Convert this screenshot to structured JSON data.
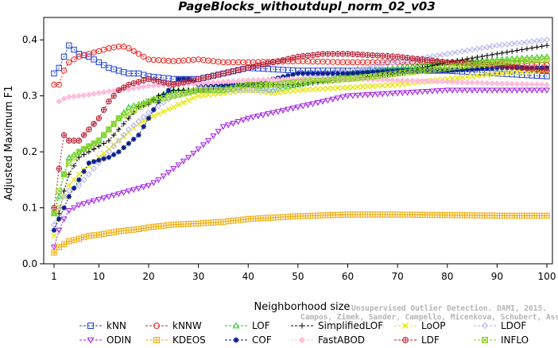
{
  "chart_data": {
    "type": "line",
    "title": "PageBlocks_withoutdupl_norm_02_v03",
    "xlabel": "Neighborhood size",
    "ylabel": "Adjusted Maximum F1",
    "xlim": [
      1,
      100
    ],
    "ylim": [
      0.0,
      0.44
    ],
    "xticks": [
      "1",
      "10",
      "20",
      "30",
      "40",
      "50",
      "60",
      "70",
      "80",
      "90",
      "100"
    ],
    "yticks": [
      "0.0",
      "0.1",
      "0.2",
      "0.3",
      "0.4"
    ],
    "grid": false,
    "legend_position": "bottom",
    "watermark": [
      "Unsupervised Outlier Detection. DAMI, 2015.",
      "Campos, Zimek, Sander, Campello, Micenkova, Schubert, Assent, Houle"
    ],
    "series": [
      {
        "name": "kNN",
        "color": "#1f3fd6",
        "marker": "square",
        "x": [
          1,
          2,
          3,
          4,
          6,
          8,
          10,
          12,
          14,
          16,
          18,
          20,
          25,
          30,
          35,
          40,
          50,
          60,
          70,
          80,
          90,
          100
        ],
        "values": [
          0.34,
          0.35,
          0.37,
          0.39,
          0.375,
          0.37,
          0.36,
          0.35,
          0.345,
          0.34,
          0.34,
          0.335,
          0.33,
          0.33,
          0.34,
          0.35,
          0.345,
          0.345,
          0.345,
          0.345,
          0.34,
          0.335
        ]
      },
      {
        "name": "kNNW",
        "color": "#e8231e",
        "marker": "circle",
        "x": [
          1,
          2,
          3,
          4,
          6,
          8,
          10,
          12,
          14,
          15,
          16,
          18,
          20,
          25,
          30,
          35,
          40,
          50,
          60,
          70,
          80,
          90,
          100
        ],
        "values": [
          0.32,
          0.32,
          0.345,
          0.36,
          0.37,
          0.375,
          0.38,
          0.385,
          0.388,
          0.388,
          0.385,
          0.375,
          0.365,
          0.362,
          0.365,
          0.36,
          0.36,
          0.362,
          0.36,
          0.36,
          0.36,
          0.36,
          0.355
        ]
      },
      {
        "name": "LOF",
        "color": "#1ec81e",
        "marker": "triangle",
        "x": [
          1,
          2,
          3,
          4,
          6,
          8,
          10,
          12,
          14,
          16,
          18,
          20,
          22,
          25,
          30,
          35,
          40,
          45,
          50,
          60,
          70,
          80,
          90,
          100
        ],
        "values": [
          0.09,
          0.12,
          0.16,
          0.19,
          0.2,
          0.21,
          0.22,
          0.24,
          0.26,
          0.28,
          0.285,
          0.29,
          0.3,
          0.31,
          0.31,
          0.32,
          0.32,
          0.31,
          0.32,
          0.34,
          0.35,
          0.36,
          0.365,
          0.37
        ]
      },
      {
        "name": "SimplifiedLOF",
        "color": "#000000",
        "marker": "plus",
        "x": [
          1,
          2,
          3,
          4,
          6,
          8,
          10,
          12,
          14,
          16,
          18,
          20,
          22,
          25,
          30,
          35,
          40,
          45,
          50,
          60,
          70,
          80,
          90,
          100
        ],
        "values": [
          0.06,
          0.09,
          0.13,
          0.16,
          0.19,
          0.2,
          0.21,
          0.22,
          0.24,
          0.26,
          0.28,
          0.285,
          0.3,
          0.31,
          0.31,
          0.315,
          0.32,
          0.32,
          0.32,
          0.33,
          0.34,
          0.36,
          0.375,
          0.39
        ]
      },
      {
        "name": "LoOP",
        "color": "#e8e81e",
        "marker": "x",
        "x": [
          1,
          2,
          3,
          4,
          6,
          8,
          10,
          12,
          14,
          16,
          18,
          20,
          25,
          30,
          35,
          40,
          45,
          50,
          60,
          70,
          80,
          90,
          100
        ],
        "values": [
          0.05,
          0.1,
          0.12,
          0.14,
          0.16,
          0.175,
          0.19,
          0.205,
          0.22,
          0.235,
          0.25,
          0.26,
          0.28,
          0.3,
          0.305,
          0.31,
          0.305,
          0.31,
          0.315,
          0.32,
          0.33,
          0.34,
          0.345
        ]
      },
      {
        "name": "LDOF",
        "color": "#b4b4f0",
        "marker": "diamond",
        "x": [
          1,
          2,
          3,
          4,
          6,
          8,
          10,
          12,
          14,
          16,
          18,
          20,
          25,
          30,
          35,
          40,
          45,
          50,
          60,
          70,
          80,
          90,
          100
        ],
        "values": [
          0.07,
          0.1,
          0.12,
          0.13,
          0.14,
          0.16,
          0.18,
          0.2,
          0.22,
          0.24,
          0.255,
          0.27,
          0.3,
          0.31,
          0.31,
          0.31,
          0.31,
          0.33,
          0.345,
          0.36,
          0.375,
          0.39,
          0.4
        ]
      },
      {
        "name": "ODIN",
        "color": "#a01ee8",
        "marker": "triangle-down",
        "x": [
          1,
          2,
          3,
          4,
          6,
          8,
          10,
          12,
          14,
          16,
          18,
          20,
          22,
          25,
          28,
          30,
          32,
          35,
          40,
          45,
          50,
          55,
          60,
          70,
          80,
          90,
          100
        ],
        "values": [
          0.03,
          0.06,
          0.08,
          0.095,
          0.105,
          0.11,
          0.115,
          0.12,
          0.125,
          0.13,
          0.135,
          0.14,
          0.15,
          0.17,
          0.19,
          0.205,
          0.22,
          0.245,
          0.26,
          0.27,
          0.28,
          0.29,
          0.3,
          0.305,
          0.31,
          0.31,
          0.31
        ]
      },
      {
        "name": "KDEOS",
        "color": "#f0a800",
        "marker": "boxplus",
        "x": [
          1,
          2,
          3,
          4,
          6,
          8,
          10,
          12,
          14,
          16,
          18,
          20,
          25,
          30,
          35,
          40,
          50,
          60,
          70,
          80,
          90,
          100
        ],
        "values": [
          0.02,
          0.03,
          0.035,
          0.04,
          0.045,
          0.05,
          0.052,
          0.055,
          0.058,
          0.06,
          0.062,
          0.065,
          0.07,
          0.072,
          0.075,
          0.08,
          0.085,
          0.088,
          0.088,
          0.087,
          0.086,
          0.086
        ]
      },
      {
        "name": "COF",
        "color": "#0a1e8c",
        "marker": "asterisk",
        "x": [
          1,
          2,
          3,
          4,
          6,
          8,
          10,
          12,
          14,
          16,
          18,
          20,
          22,
          24,
          26,
          28,
          30,
          35,
          40,
          45,
          50,
          60,
          70,
          80,
          90,
          100
        ],
        "values": [
          0.06,
          0.08,
          0.1,
          0.12,
          0.15,
          0.18,
          0.185,
          0.19,
          0.2,
          0.215,
          0.23,
          0.26,
          0.29,
          0.31,
          0.33,
          0.33,
          0.32,
          0.32,
          0.32,
          0.33,
          0.34,
          0.34,
          0.345,
          0.345,
          0.35,
          0.35
        ]
      },
      {
        "name": "FastABOD",
        "color": "#ffbcdc",
        "marker": "diamond-filled",
        "x": [
          2,
          3,
          4,
          6,
          8,
          10,
          12,
          14,
          16,
          18,
          20,
          25,
          30,
          35,
          40,
          50,
          60,
          70,
          80,
          90,
          100
        ],
        "values": [
          0.29,
          0.295,
          0.298,
          0.3,
          0.302,
          0.305,
          0.308,
          0.31,
          0.312,
          0.315,
          0.318,
          0.32,
          0.322,
          0.325,
          0.328,
          0.33,
          0.33,
          0.328,
          0.325,
          0.322,
          0.32
        ]
      },
      {
        "name": "LDF",
        "color": "#b41e32",
        "marker": "circleplus",
        "x": [
          1,
          2,
          3,
          4,
          6,
          8,
          10,
          12,
          14,
          16,
          18,
          20,
          25,
          30,
          35,
          40,
          45,
          50,
          55,
          60,
          70,
          80,
          90,
          100
        ],
        "values": [
          0.1,
          0.17,
          0.23,
          0.22,
          0.22,
          0.24,
          0.26,
          0.29,
          0.31,
          0.32,
          0.325,
          0.33,
          0.32,
          0.33,
          0.34,
          0.35,
          0.36,
          0.37,
          0.375,
          0.375,
          0.37,
          0.36,
          0.355,
          0.345
        ]
      },
      {
        "name": "INFLO",
        "color": "#8cd21e",
        "marker": "boxcross",
        "x": [
          1,
          2,
          3,
          4,
          6,
          8,
          10,
          12,
          14,
          16,
          18,
          20,
          25,
          30,
          35,
          40,
          45,
          50,
          60,
          70,
          80,
          90,
          100
        ],
        "values": [
          0.09,
          0.13,
          0.16,
          0.18,
          0.2,
          0.21,
          0.22,
          0.24,
          0.26,
          0.27,
          0.28,
          0.29,
          0.3,
          0.31,
          0.31,
          0.32,
          0.32,
          0.325,
          0.33,
          0.34,
          0.35,
          0.36,
          0.365
        ]
      }
    ]
  }
}
